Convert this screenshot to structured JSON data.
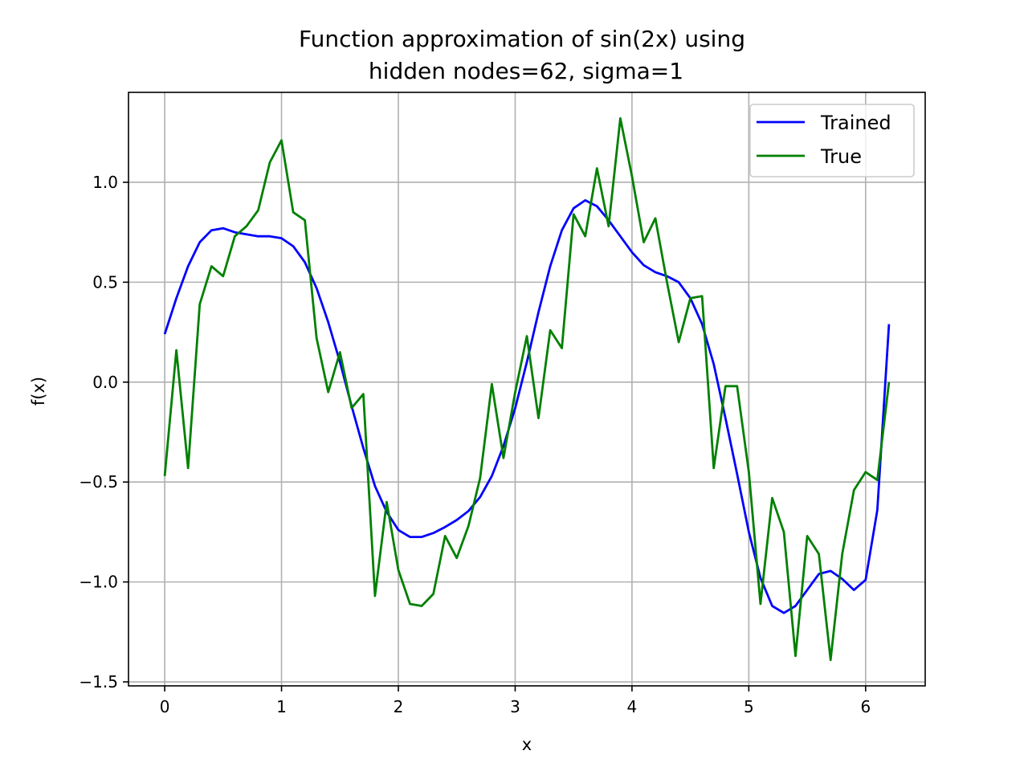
{
  "chart_data": {
    "type": "line",
    "title": [
      "Function approximation of sin(2x) using",
      "hidden nodes=62, sigma=1"
    ],
    "xlabel": "x",
    "ylabel": "f(x)",
    "xlim": [
      -0.31,
      6.51
    ],
    "ylim": [
      -1.52,
      1.45
    ],
    "xticks": [
      0,
      1,
      2,
      3,
      4,
      5,
      6
    ],
    "xtick_labels": [
      "0",
      "1",
      "2",
      "3",
      "4",
      "5",
      "6"
    ],
    "yticks": [
      -1.5,
      -1.0,
      -0.5,
      0.0,
      0.5,
      1.0
    ],
    "ytick_labels": [
      "−1.5",
      "−1.0",
      "−0.5",
      "0.0",
      "0.5",
      "1.0"
    ],
    "grid": true,
    "legend_position": "top-right",
    "x": [
      0.0,
      0.1,
      0.2,
      0.3,
      0.4,
      0.5,
      0.6,
      0.7,
      0.8,
      0.9,
      1.0,
      1.1,
      1.2,
      1.3,
      1.4,
      1.5,
      1.6,
      1.7,
      1.8,
      1.9,
      2.0,
      2.1,
      2.2,
      2.3,
      2.4,
      2.5,
      2.6,
      2.7,
      2.8,
      2.9,
      3.0,
      3.1,
      3.2,
      3.3,
      3.4,
      3.5,
      3.6,
      3.7,
      3.8,
      3.9,
      4.0,
      4.1,
      4.2,
      4.3,
      4.4,
      4.5,
      4.6,
      4.7,
      4.8,
      4.9,
      5.0,
      5.1,
      5.2,
      5.3,
      5.4,
      5.5,
      5.6,
      5.7,
      5.8,
      5.9,
      6.0,
      6.1,
      6.2
    ],
    "series": [
      {
        "name": "Trained",
        "color": "#0000ff",
        "values": [
          0.24,
          0.42,
          0.58,
          0.7,
          0.76,
          0.77,
          0.75,
          0.74,
          0.73,
          0.73,
          0.72,
          0.68,
          0.6,
          0.47,
          0.3,
          0.1,
          -0.12,
          -0.33,
          -0.52,
          -0.65,
          -0.74,
          -0.775,
          -0.775,
          -0.755,
          -0.725,
          -0.69,
          -0.645,
          -0.575,
          -0.47,
          -0.32,
          -0.13,
          0.1,
          0.35,
          0.58,
          0.76,
          0.87,
          0.91,
          0.88,
          0.81,
          0.73,
          0.65,
          0.585,
          0.55,
          0.53,
          0.5,
          0.42,
          0.29,
          0.09,
          -0.18,
          -0.46,
          -0.75,
          -0.98,
          -1.12,
          -1.155,
          -1.12,
          -1.04,
          -0.96,
          -0.945,
          -0.985,
          -1.04,
          -0.99,
          -0.64,
          0.29
        ]
      },
      {
        "name": "True",
        "color": "#008000",
        "values": [
          -0.47,
          0.16,
          -0.43,
          0.39,
          0.58,
          0.53,
          0.73,
          0.78,
          0.86,
          1.1,
          1.21,
          0.85,
          0.81,
          0.22,
          -0.05,
          0.15,
          -0.13,
          -0.06,
          -1.07,
          -0.6,
          -0.94,
          -1.11,
          -1.12,
          -1.06,
          -0.77,
          -0.88,
          -0.72,
          -0.48,
          -0.01,
          -0.38,
          -0.05,
          0.23,
          -0.18,
          0.26,
          0.17,
          0.84,
          0.73,
          1.07,
          0.78,
          1.32,
          1.03,
          0.7,
          0.82,
          0.5,
          0.2,
          0.42,
          0.43,
          -0.43,
          -0.02,
          -0.02,
          -0.45,
          -1.11,
          -0.58,
          -0.75,
          -1.37,
          -0.77,
          -0.86,
          -1.39,
          -0.86,
          -0.54,
          -0.45,
          -0.49,
          0.0
        ]
      }
    ]
  }
}
